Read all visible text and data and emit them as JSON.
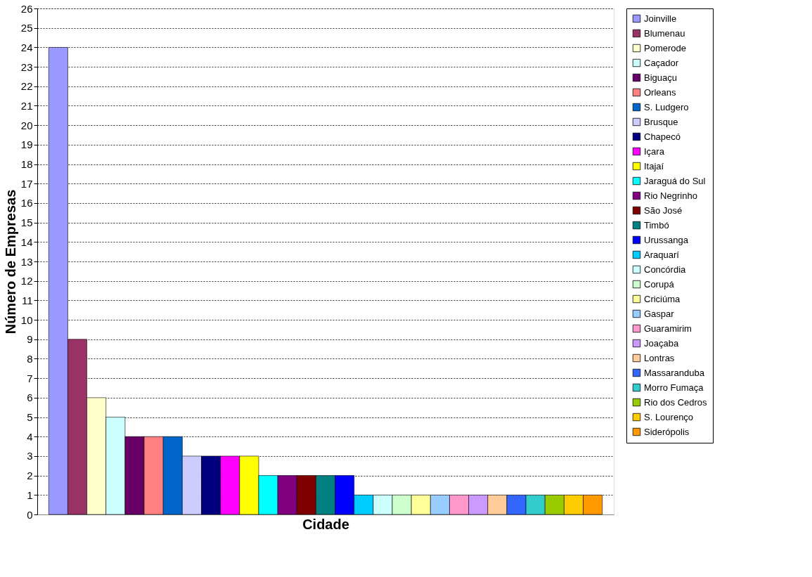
{
  "chart_data": {
    "type": "bar",
    "xlabel": "Cidade",
    "ylabel": "Número de Empresas",
    "categories": [
      null
    ],
    "ylim": [
      0,
      26
    ],
    "yticks": [
      0,
      1,
      2,
      3,
      4,
      5,
      6,
      7,
      8,
      9,
      10,
      11,
      12,
      13,
      14,
      15,
      16,
      17,
      18,
      19,
      20,
      21,
      22,
      23,
      24,
      25,
      26
    ],
    "grid": "y",
    "legend": "right",
    "tick_labels": "y",
    "series": [
      {
        "name": "Joinville",
        "color": "#9999ff",
        "values": [
          24
        ]
      },
      {
        "name": "Blumenau",
        "color": "#993366",
        "values": [
          9
        ]
      },
      {
        "name": "Pomerode",
        "color": "#ffffcc",
        "values": [
          6
        ]
      },
      {
        "name": "Caçador",
        "color": "#ccffff",
        "values": [
          5
        ]
      },
      {
        "name": "Biguaçu",
        "color": "#660066",
        "values": [
          4
        ]
      },
      {
        "name": "Orleans",
        "color": "#ff8080",
        "values": [
          4
        ]
      },
      {
        "name": "S. Ludgero",
        "color": "#0066cc",
        "values": [
          4
        ]
      },
      {
        "name": "Brusque",
        "color": "#ccccff",
        "values": [
          3
        ]
      },
      {
        "name": "Chapecó",
        "color": "#000080",
        "values": [
          3
        ]
      },
      {
        "name": "Içara",
        "color": "#ff00ff",
        "values": [
          3
        ]
      },
      {
        "name": "Itajaí",
        "color": "#ffff00",
        "values": [
          3
        ]
      },
      {
        "name": "Jaraguá do Sul",
        "color": "#00ffff",
        "values": [
          2
        ]
      },
      {
        "name": "Rio Negrinho",
        "color": "#800080",
        "values": [
          2
        ]
      },
      {
        "name": "São José",
        "color": "#800000",
        "values": [
          2
        ]
      },
      {
        "name": "Timbó",
        "color": "#008080",
        "values": [
          2
        ]
      },
      {
        "name": "Urussanga",
        "color": "#0000ff",
        "values": [
          2
        ]
      },
      {
        "name": "Araquarí",
        "color": "#00ccff",
        "values": [
          1
        ]
      },
      {
        "name": "Concórdia",
        "color": "#ccffff",
        "values": [
          1
        ]
      },
      {
        "name": "Corupá",
        "color": "#ccffcc",
        "values": [
          1
        ]
      },
      {
        "name": "Criciúma",
        "color": "#ffff99",
        "values": [
          1
        ]
      },
      {
        "name": "Gaspar",
        "color": "#99ccff",
        "values": [
          1
        ]
      },
      {
        "name": "Guaramirim",
        "color": "#ff99cc",
        "values": [
          1
        ]
      },
      {
        "name": "Joaçaba",
        "color": "#cc99ff",
        "values": [
          1
        ]
      },
      {
        "name": "Lontras",
        "color": "#ffcc99",
        "values": [
          1
        ]
      },
      {
        "name": "Massaranduba",
        "color": "#3366ff",
        "values": [
          1
        ]
      },
      {
        "name": "Morro Fumaça",
        "color": "#33cccc",
        "values": [
          1
        ]
      },
      {
        "name": "Rio dos Cedros",
        "color": "#99cc00",
        "values": [
          1
        ]
      },
      {
        "name": "S. Lourenço",
        "color": "#ffcc00",
        "values": [
          1
        ]
      },
      {
        "name": "Siderópolis",
        "color": "#ff9900",
        "values": [
          1
        ]
      }
    ]
  }
}
